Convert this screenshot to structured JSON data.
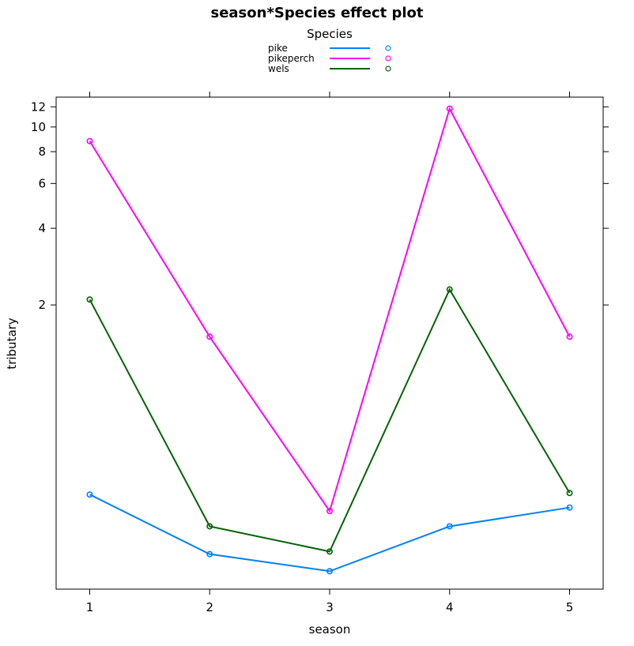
{
  "chart_data": {
    "type": "line",
    "title": "season*Species effect plot",
    "xlabel": "season",
    "ylabel": "tributary",
    "x": [
      1,
      2,
      3,
      4,
      5
    ],
    "x_ticks": [
      "1",
      "2",
      "3",
      "4",
      "5"
    ],
    "y_scale": "log",
    "y_ticks": [
      2,
      4,
      6,
      8,
      10,
      12
    ],
    "y_tick_labels": [
      "2",
      "4",
      "6",
      "8",
      "10",
      "12"
    ],
    "ylim": [
      0.153,
      13.1
    ],
    "xlim": [
      0.72,
      5.28
    ],
    "grid": false,
    "legend": {
      "title": "Species",
      "position": "top"
    },
    "series": [
      {
        "name": "pike",
        "color": "#0080ff",
        "values": [
          0.36,
          0.21,
          0.18,
          0.27,
          0.32
        ]
      },
      {
        "name": "pikeperch",
        "color": "#ff00ff",
        "values": [
          8.8,
          1.5,
          0.31,
          11.8,
          1.5
        ]
      },
      {
        "name": "wels",
        "color": "#006400",
        "values": [
          2.1,
          0.27,
          0.215,
          2.3,
          0.365
        ]
      }
    ]
  }
}
